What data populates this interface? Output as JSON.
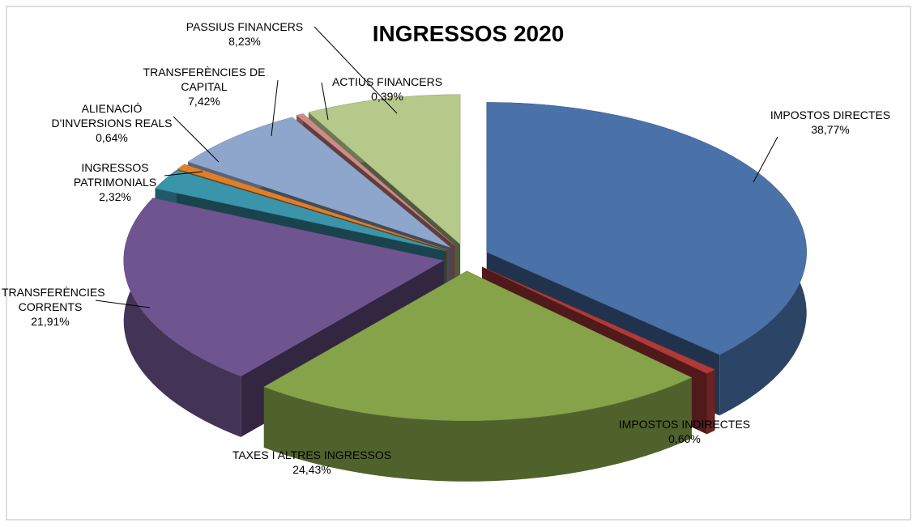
{
  "chart_data": {
    "type": "pie3d",
    "title": "INGRESSOS 2020",
    "categories": [
      "IMPOSTOS DIRECTES",
      "IMPOSTOS INDIRECTES",
      "TAXES I ALTRES INGRESSOS",
      "TRANSFERÈNCIES CORRENTS",
      "INGRESSOS PATRIMONIALS",
      "ALIENACIÓ D'INVERSIONS REALS",
      "TRANSFERÈNCIES DE CAPITAL",
      "ACTIUS FINANCERS",
      "PASSIUS FINANCERS"
    ],
    "values": [
      38.77,
      0.6,
      24.43,
      21.91,
      2.32,
      0.64,
      7.42,
      0.39,
      8.23
    ],
    "value_labels": [
      "38,77%",
      "0,60%",
      "24,43%",
      "21,91%",
      "2,32%",
      "0,64%",
      "7,42%",
      "0,39%",
      "8,23%"
    ],
    "colors": [
      "#4a72a8",
      "#b03a38",
      "#86a34a",
      "#6f5590",
      "#3a95ab",
      "#e07f2a",
      "#8fa6cc",
      "#d08a8a",
      "#b5c98b"
    ]
  }
}
